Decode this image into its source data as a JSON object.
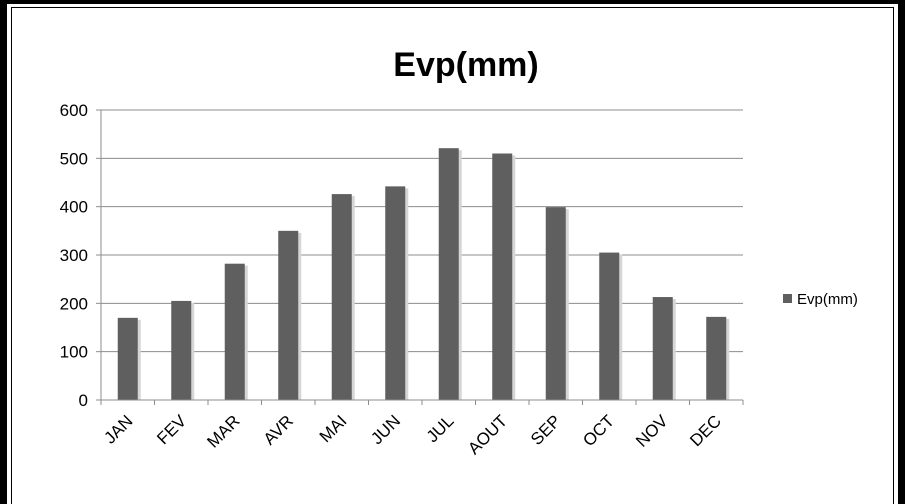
{
  "chart_data": {
    "type": "bar",
    "title": "Evp(mm)",
    "categories": [
      "JAN",
      "FEV",
      "MAR",
      "AVR",
      "MAI",
      "JUN",
      "JUL",
      "AOUT",
      "SEP",
      "OCT",
      "NOV",
      "DEC"
    ],
    "series": [
      {
        "name": "Evp(mm)",
        "values": [
          170,
          205,
          282,
          350,
          426,
          442,
          521,
          510,
          399,
          305,
          213,
          172
        ],
        "color": "#5f5f5f"
      }
    ],
    "yticks": [
      "0",
      "100",
      "200",
      "300",
      "400",
      "500",
      "600"
    ],
    "ylim": [
      0,
      600
    ],
    "grid": true,
    "legend_position": "right"
  }
}
